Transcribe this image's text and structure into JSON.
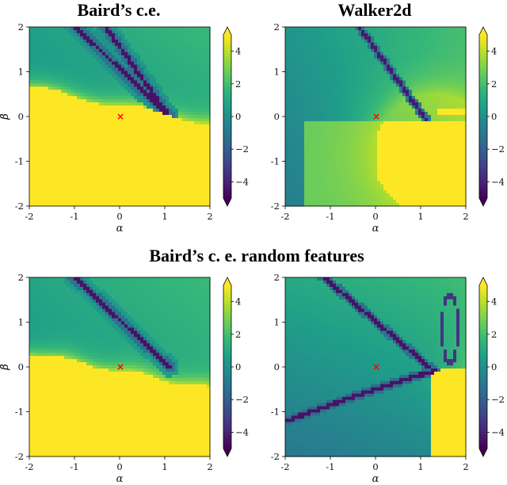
{
  "titles": {
    "top_left": "Baird’s c.e.",
    "top_right": "Walker2d",
    "bottom": "Baird’s c. e. random features"
  },
  "chart_data": [
    {
      "id": "bairds_ce",
      "type": "heatmap",
      "title": "Baird’s c.e.",
      "xlabel": "α",
      "ylabel": "β",
      "xlim": [
        -2,
        2
      ],
      "ylim": [
        -2,
        2
      ],
      "xticks": [
        "-2",
        "-1",
        "0",
        "1",
        "2"
      ],
      "yticks": [
        "-2",
        "-1",
        "0",
        "1",
        "2"
      ],
      "marker": {
        "symbol": "×",
        "x": 0.0,
        "y": 0.0,
        "color": "#ff0000"
      },
      "colorbar": {
        "ticks": [
          "4",
          "2",
          "0",
          "−2",
          "−4"
        ],
        "range": [
          -5,
          5
        ],
        "colormap": "viridis",
        "extend": "both"
      }
    },
    {
      "id": "walker2d",
      "type": "heatmap",
      "title": "Walker2d",
      "xlabel": "α",
      "ylabel": "β",
      "xlim": [
        -2,
        2
      ],
      "ylim": [
        -2,
        2
      ],
      "xticks": [
        "-2",
        "-1",
        "0",
        "1",
        "2"
      ],
      "yticks": [
        "-2",
        "-1",
        "0",
        "1",
        "2"
      ],
      "marker": {
        "symbol": "×",
        "x": 0.0,
        "y": 0.0,
        "color": "#ff0000"
      },
      "colorbar": {
        "ticks": [
          "4",
          "2",
          "0",
          "−2",
          "−4"
        ],
        "range": [
          -5,
          5
        ],
        "colormap": "viridis",
        "extend": "both"
      }
    },
    {
      "id": "bairds_ce_random_features_left",
      "type": "heatmap",
      "title": "Baird’s c. e. random features",
      "xlabel": "α",
      "ylabel": "β",
      "xlim": [
        -2,
        2
      ],
      "ylim": [
        -2,
        2
      ],
      "xticks": [
        "-2",
        "-1",
        "0",
        "1",
        "2"
      ],
      "yticks": [
        "-2",
        "-1",
        "0",
        "1",
        "2"
      ],
      "marker": {
        "symbol": "×",
        "x": 0.0,
        "y": 0.0,
        "color": "#ff0000"
      },
      "colorbar": {
        "ticks": [
          "4",
          "2",
          "0",
          "−2",
          "−4"
        ],
        "range": [
          -5,
          5
        ],
        "colormap": "viridis",
        "extend": "both"
      }
    },
    {
      "id": "bairds_ce_random_features_right",
      "type": "heatmap",
      "title": "",
      "xlabel": "α",
      "ylabel": "β",
      "xlim": [
        -2,
        2
      ],
      "ylim": [
        -2,
        2
      ],
      "xticks": [
        "-2",
        "-1",
        "0",
        "1",
        "2"
      ],
      "yticks": [
        "-2",
        "-1",
        "0",
        "1",
        "2"
      ],
      "marker": {
        "symbol": "×",
        "x": 0.0,
        "y": 0.0,
        "color": "#ff0000"
      },
      "colorbar": {
        "ticks": [
          "4",
          "2",
          "0",
          "−2",
          "−4"
        ],
        "range": [
          -5,
          5
        ],
        "colormap": "viridis",
        "extend": "both"
      }
    }
  ]
}
